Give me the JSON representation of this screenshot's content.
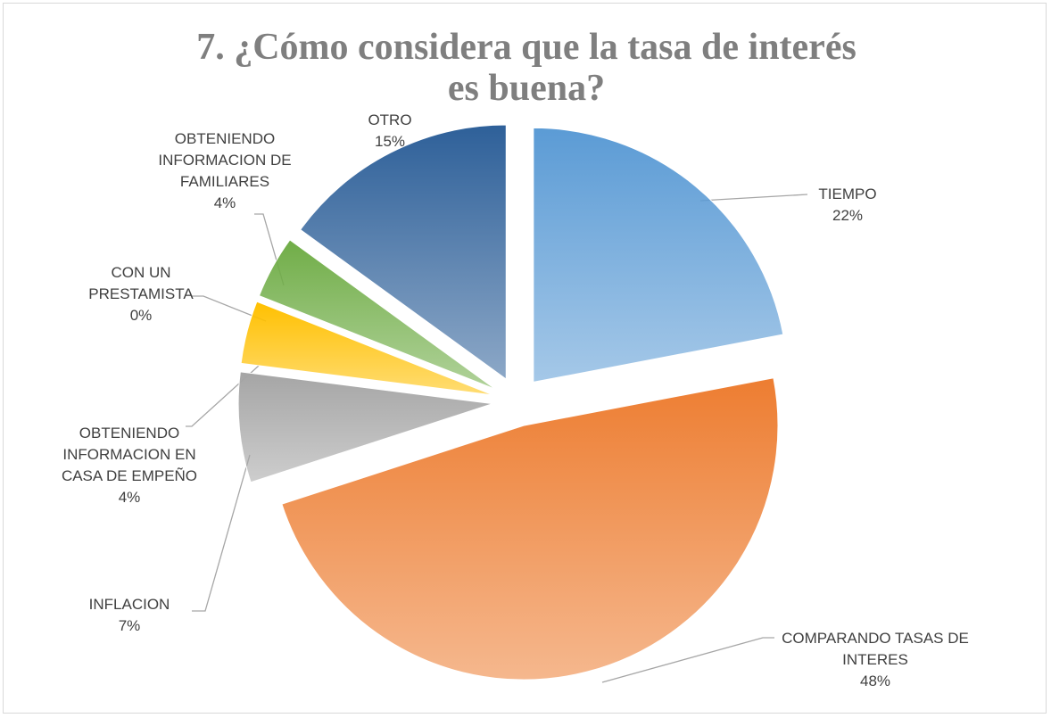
{
  "chart_data": {
    "type": "pie",
    "title": "7.   ¿Cómo considera que la tasa de interés es buena?",
    "categories": [
      "TIEMPO",
      "COMPARANDO TASAS DE INTERES",
      "INFLACION",
      "OBTENIENDO INFORMACION EN CASA DE EMPEÑO",
      "CON UN PRESTAMISTA",
      "OBTENIENDO INFORMACION DE FAMILIARES",
      "OTRO"
    ],
    "values": [
      22,
      48,
      7,
      4,
      0,
      4,
      15
    ],
    "value_labels": [
      "22%",
      "48%",
      "7%",
      "4%",
      "0%",
      "4%",
      "15%"
    ],
    "colors": [
      "#5b9bd5",
      "#ed7d31",
      "#a5a5a5",
      "#ffc000",
      "#4472c4",
      "#70ad47",
      "#2e6099"
    ]
  }
}
